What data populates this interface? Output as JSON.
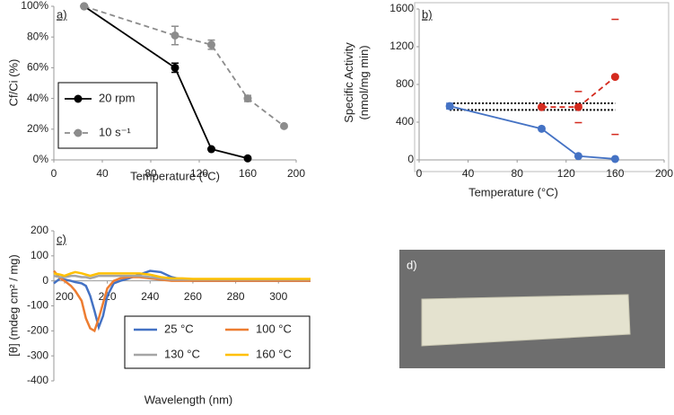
{
  "chart_data": [
    {
      "type": "line",
      "label": "a)",
      "xlabel": "Temperature (°C)",
      "ylabel": [
        "Cf/Ci (%)"
      ],
      "xlim": [
        0,
        200
      ],
      "xticks": [
        0,
        40,
        80,
        120,
        160,
        200
      ],
      "ylim": [
        0,
        100
      ],
      "yticks": [
        {
          "value": 0,
          "label": "0%"
        },
        {
          "value": 20,
          "label": "20%"
        },
        {
          "value": 40,
          "label": "40%"
        },
        {
          "value": 60,
          "label": "60%"
        },
        {
          "value": 80,
          "label": "80%"
        },
        {
          "value": 100,
          "label": "100%"
        }
      ],
      "legend": "lower left",
      "error_style": "bars",
      "series": [
        {
          "name": "20 rpm",
          "color": "#000000",
          "linestyle": "solid",
          "marker": true,
          "x": [
            25,
            100,
            130,
            160
          ],
          "values": [
            100,
            60,
            7,
            1
          ],
          "errors": [
            0,
            3,
            0,
            0
          ]
        },
        {
          "name": "10 s⁻¹",
          "color": "#8c8c8c",
          "linestyle": "dashed",
          "marker": true,
          "x": [
            25,
            100,
            130,
            160,
            190
          ],
          "values": [
            100,
            81,
            75,
            40,
            22
          ],
          "errors": [
            0,
            6,
            3,
            2,
            1
          ]
        }
      ]
    },
    {
      "type": "line",
      "label": "b)",
      "xlabel": "Temperature (°C)",
      "ylabel": [
        "Specific Activity",
        "(nmol/mg min)"
      ],
      "xlim": [
        0,
        200
      ],
      "xticks": [
        0,
        40,
        80,
        120,
        160,
        200
      ],
      "ylim": [
        0,
        1600
      ],
      "yticks": [
        0,
        400,
        800,
        1200,
        1600
      ],
      "error_style": "caps",
      "hlines": [
        600,
        530
      ],
      "series": [
        {
          "color": "#4472c4",
          "linestyle": "solid",
          "marker": true,
          "x": [
            25,
            100,
            130,
            160
          ],
          "values": [
            570,
            330,
            40,
            10
          ],
          "errors": [
            30,
            0,
            0,
            0
          ]
        },
        {
          "color": "#d42a1e",
          "linestyle": "dashed",
          "marker": true,
          "x": [
            100,
            130,
            160
          ],
          "values": [
            560,
            560,
            880
          ],
          "errors": [
            0,
            165,
            610
          ]
        }
      ]
    },
    {
      "type": "line",
      "label": "c)",
      "xlabel": "Wavelength (nm)",
      "ylabel": [
        "[θ] (mdeg cm² / mg)"
      ],
      "xlim": [
        195,
        315
      ],
      "xticks": [
        200,
        220,
        240,
        260,
        280,
        300
      ],
      "ylim": [
        -400,
        200
      ],
      "yticks": [
        -400,
        -300,
        -200,
        -100,
        0,
        100,
        200
      ],
      "legend": "lower right",
      "x": [
        195,
        198,
        200,
        203,
        205,
        208,
        210,
        212,
        214,
        216,
        218,
        220,
        223,
        226,
        230,
        235,
        240,
        245,
        250,
        255,
        260,
        270,
        280,
        290,
        300,
        310,
        315
      ],
      "series": [
        {
          "name": "25 °C",
          "color": "#4472c4",
          "linestyle": "solid",
          "marker": false,
          "values": [
            -10,
            10,
            5,
            0,
            -5,
            -10,
            -20,
            -60,
            -120,
            -185,
            -140,
            -60,
            -10,
            0,
            10,
            25,
            40,
            35,
            15,
            5,
            0,
            0,
            0,
            0,
            0,
            0,
            0
          ]
        },
        {
          "name": "100 °C",
          "color": "#ed7d31",
          "linestyle": "solid",
          "marker": false,
          "values": [
            40,
            10,
            0,
            -20,
            -40,
            -80,
            -150,
            -190,
            -200,
            -150,
            -90,
            -30,
            0,
            10,
            15,
            15,
            10,
            5,
            0,
            0,
            0,
            0,
            0,
            0,
            0,
            0,
            0
          ]
        },
        {
          "name": "130 °C",
          "color": "#a5a5a5",
          "linestyle": "solid",
          "marker": false,
          "values": [
            20,
            15,
            15,
            20,
            20,
            15,
            15,
            10,
            15,
            20,
            20,
            20,
            20,
            20,
            20,
            20,
            15,
            10,
            5,
            5,
            5,
            5,
            5,
            5,
            5,
            5,
            5
          ]
        },
        {
          "name": "160 °C",
          "color": "#ffc000",
          "linestyle": "solid",
          "marker": false,
          "values": [
            30,
            25,
            20,
            30,
            35,
            30,
            25,
            20,
            25,
            30,
            30,
            30,
            30,
            30,
            30,
            30,
            25,
            15,
            10,
            10,
            8,
            8,
            8,
            8,
            8,
            8,
            8
          ]
        }
      ]
    }
  ],
  "photo": {
    "label": "d)"
  }
}
